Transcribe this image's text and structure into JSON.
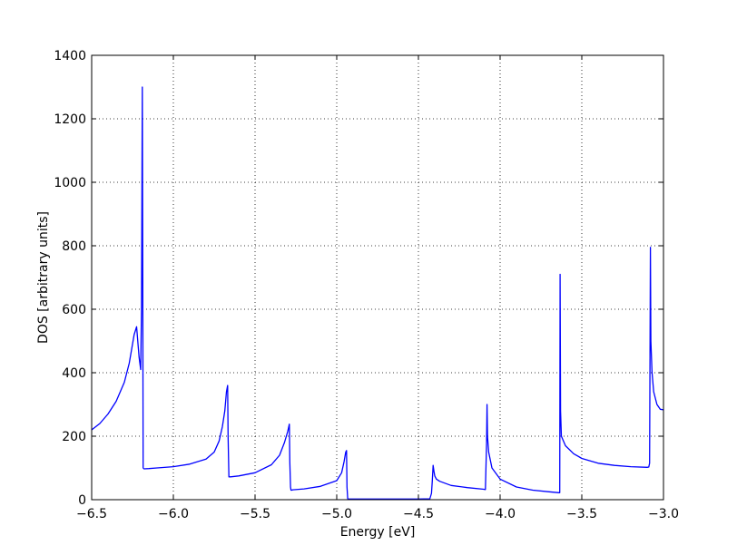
{
  "chart_data": {
    "type": "line",
    "title": "",
    "xlabel": "Energy [eV]",
    "ylabel": "DOS [arbitrary units]",
    "xlim": [
      -6.5,
      -3.0
    ],
    "ylim": [
      0,
      1400
    ],
    "xticks": [
      -6.5,
      -6.0,
      -5.5,
      -5.0,
      -4.5,
      -4.0,
      -3.5,
      -3.0
    ],
    "xtick_labels": [
      "−6.5",
      "−6.0",
      "−5.5",
      "−5.0",
      "−4.5",
      "−4.0",
      "−3.5",
      "−3.0"
    ],
    "yticks": [
      0,
      200,
      400,
      600,
      800,
      1000,
      1200,
      1400
    ],
    "ytick_labels": [
      "0",
      "200",
      "400",
      "600",
      "800",
      "1000",
      "1200",
      "1400"
    ],
    "grid": true,
    "line_color": "#0000ff",
    "series": [
      {
        "x": [
          -6.5,
          -6.45,
          -6.4,
          -6.35,
          -6.3,
          -6.27,
          -6.24,
          -6.225,
          -6.21,
          -6.2,
          -6.195,
          -6.19,
          -6.187,
          -6.185,
          -6.18,
          -6.15,
          -6.1,
          -6.0,
          -5.9,
          -5.8,
          -5.75,
          -5.72,
          -5.7,
          -5.685,
          -5.675,
          -5.668,
          -5.665,
          -5.66,
          -5.65,
          -5.6,
          -5.5,
          -5.4,
          -5.35,
          -5.32,
          -5.3,
          -5.29,
          -5.287,
          -5.283,
          -5.28,
          -5.275,
          -5.27,
          -5.2,
          -5.1,
          -5.0,
          -4.97,
          -4.955,
          -4.945,
          -4.94,
          -4.937,
          -4.933,
          -4.93,
          -4.9,
          -4.8,
          -4.7,
          -4.6,
          -4.5,
          -4.43,
          -4.42,
          -4.415,
          -4.41,
          -4.405,
          -4.4,
          -4.39,
          -4.37,
          -4.3,
          -4.2,
          -4.1,
          -4.09,
          -4.083,
          -4.08,
          -4.077,
          -4.07,
          -4.05,
          -4.0,
          -3.9,
          -3.8,
          -3.7,
          -3.64,
          -3.635,
          -3.633,
          -3.63,
          -3.625,
          -3.6,
          -3.55,
          -3.5,
          -3.4,
          -3.3,
          -3.2,
          -3.1,
          -3.09,
          -3.085,
          -3.08,
          -3.077,
          -3.07,
          -3.06,
          -3.04,
          -3.02,
          -3.0
        ],
        "y": [
          220,
          240,
          270,
          310,
          370,
          430,
          520,
          545,
          450,
          410,
          600,
          1300,
          700,
          100,
          97,
          98,
          100,
          104,
          112,
          128,
          150,
          185,
          230,
          280,
          340,
          360,
          200,
          72,
          72,
          75,
          85,
          110,
          140,
          180,
          215,
          238,
          120,
          40,
          30,
          30,
          31,
          34,
          42,
          60,
          85,
          120,
          150,
          155,
          40,
          3,
          2,
          2,
          2,
          2,
          2,
          2,
          3,
          20,
          60,
          108,
          90,
          75,
          65,
          58,
          45,
          38,
          33,
          32,
          180,
          300,
          200,
          150,
          100,
          65,
          40,
          30,
          25,
          22,
          22,
          710,
          280,
          200,
          170,
          145,
          130,
          115,
          108,
          104,
          102,
          103,
          115,
          795,
          500,
          400,
          340,
          300,
          285,
          283
        ]
      }
    ]
  }
}
